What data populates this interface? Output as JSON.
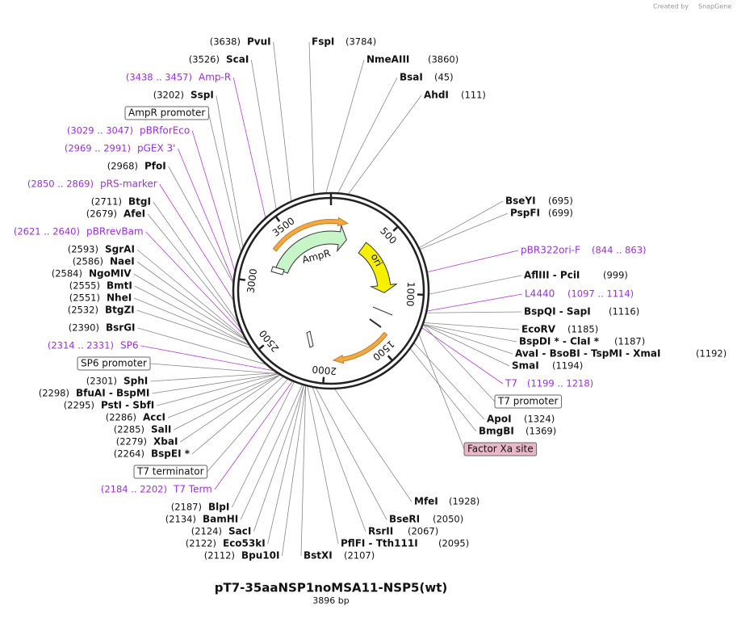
{
  "title": "pT7-35aaNSP1noMSA11-NSP5(wt)",
  "subtitle": "3896 bp",
  "credit": "Created by",
  "brand": "SnapGene",
  "length": 3896,
  "ruler": [
    500,
    1000,
    1500,
    2000,
    2500,
    3000,
    3500
  ],
  "features": [
    "AmpR",
    "ori"
  ],
  "labels": [
    {
      "pos": "(3638)",
      "name": "PvuI"
    },
    {
      "name": "FspI",
      "pos": "(3784)"
    },
    {
      "pos": "(3526)",
      "name": "ScaI"
    },
    {
      "name": "NmeAIII",
      "pos": "(3860)"
    },
    {
      "pos": "(3438 .. 3457)",
      "name": "Amp-R"
    },
    {
      "name": "BsaI",
      "pos": "(45)"
    },
    {
      "pos": "(3202)",
      "name": "SspI"
    },
    {
      "name": "AhdI",
      "pos": "(111)"
    },
    {
      "name": "AmpR promoter"
    },
    {
      "pos": "(3029 .. 3047)",
      "name": "pBRforEco"
    },
    {
      "pos": "(2969 .. 2991)",
      "name": "pGEX 3'"
    },
    {
      "pos": "(2968)",
      "name": "PfoI"
    },
    {
      "pos": "(2850 .. 2869)",
      "name": "pRS-marker"
    },
    {
      "pos": "(2711)",
      "name": "BtgI"
    },
    {
      "name": "BseYI",
      "pos": "(695)"
    },
    {
      "pos": "(2679)",
      "name": "AfeI"
    },
    {
      "name": "PspFI",
      "pos": "(699)"
    },
    {
      "pos": "(2621 .. 2640)",
      "name": "pBRrevBam"
    },
    {
      "name": "pBR322ori-F",
      "pos": "(844 .. 863)"
    },
    {
      "pos": "(2593)",
      "name": "SgrAI"
    },
    {
      "pos": "(2586)",
      "name": "NaeI"
    },
    {
      "pos": "(2584)",
      "name": "NgoMIV"
    },
    {
      "name": "AflIII  -  PciI",
      "pos": "(999)"
    },
    {
      "pos": "(2555)",
      "name": "BmtI"
    },
    {
      "pos": "(2551)",
      "name": "NheI"
    },
    {
      "name": "L4440",
      "pos": "(1097 .. 1114)"
    },
    {
      "pos": "(2532)",
      "name": "BtgZI"
    },
    {
      "name": "BspQI  -  SapI",
      "pos": "(1116)"
    },
    {
      "pos": "(2390)",
      "name": "BsrGI"
    },
    {
      "name": "EcoRV",
      "pos": "(1185)"
    },
    {
      "name": "BspDI *  -  ClaI *",
      "pos": "(1187)"
    },
    {
      "pos": "(2314 .. 2331)",
      "name": "SP6"
    },
    {
      "name": "AvaI  -  BsoBI  -  TspMI  -  XmaI",
      "pos": "(1192)"
    },
    {
      "name": "SP6 promoter"
    },
    {
      "name": "SmaI",
      "pos": "(1194)"
    },
    {
      "pos": "(2301)",
      "name": "SphI"
    },
    {
      "name": "T7",
      "pos": "(1199 .. 1218)"
    },
    {
      "pos": "(2298)",
      "name": "BfuAI  -  BspMI"
    },
    {
      "name": "T7 promoter"
    },
    {
      "pos": "(2295)",
      "name": "PstI  -  SbfI"
    },
    {
      "pos": "(2286)",
      "name": "AccI"
    },
    {
      "name": "ApoI",
      "pos": "(1324)"
    },
    {
      "pos": "(2285)",
      "name": "SalI"
    },
    {
      "name": "BmgBI",
      "pos": "(1369)"
    },
    {
      "pos": "(2279)",
      "name": "XbaI"
    },
    {
      "name": "Factor Xa site"
    },
    {
      "pos": "(2264)",
      "name": "BspEI *"
    },
    {
      "name": "T7 terminator"
    },
    {
      "pos": "(2184 .. 2202)",
      "name": "T7 Term"
    },
    {
      "name": "MfeI",
      "pos": "(1928)"
    },
    {
      "pos": "(2187)",
      "name": "BlpI"
    },
    {
      "name": "BseRI",
      "pos": "(2050)"
    },
    {
      "pos": "(2134)",
      "name": "BamHI"
    },
    {
      "name": "RsrII",
      "pos": "(2067)"
    },
    {
      "pos": "(2124)",
      "name": "SacI"
    },
    {
      "name": "PflFI  -  Tth111I",
      "pos": "(2095)"
    },
    {
      "pos": "(2122)",
      "name": "Eco53kI"
    },
    {
      "pos": "(2112)",
      "name": "Bpu10I"
    },
    {
      "name": "BstXI",
      "pos": "(2107)"
    }
  ]
}
